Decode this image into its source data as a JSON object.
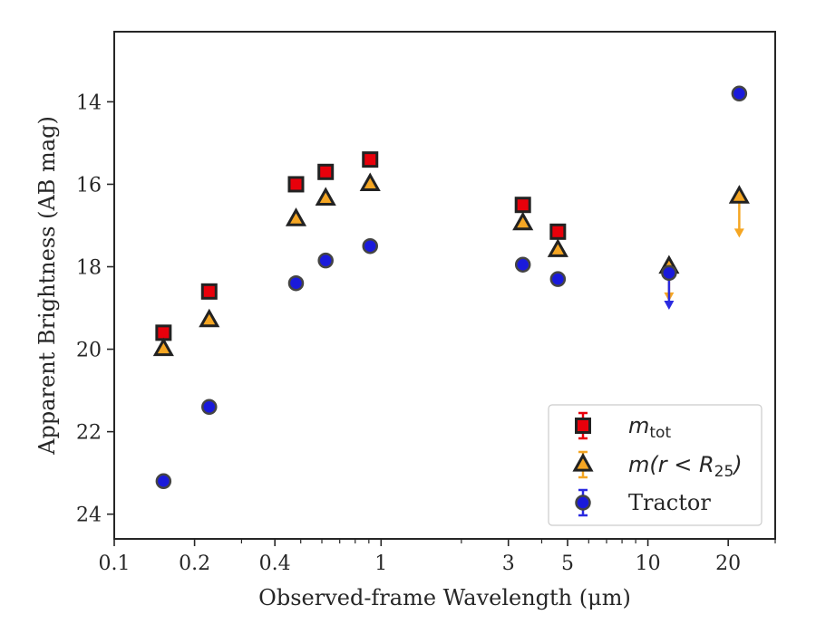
{
  "chart_data": {
    "type": "scatter",
    "xlabel": "Observed-frame Wavelength (μm)",
    "ylabel": "Apparent Brightness (AB mag)",
    "xscale": "log",
    "xlim": [
      0.1,
      30
    ],
    "ylim": [
      24.6,
      12.3
    ],
    "y_inverted": true,
    "x_ticks": [
      {
        "value": 0.1,
        "label": "0.1"
      },
      {
        "value": 0.2,
        "label": "0.2"
      },
      {
        "value": 0.4,
        "label": "0.4"
      },
      {
        "value": 1,
        "label": "1"
      },
      {
        "value": 3,
        "label": "3"
      },
      {
        "value": 5,
        "label": "5"
      },
      {
        "value": 10,
        "label": "10"
      },
      {
        "value": 20,
        "label": "20"
      }
    ],
    "x_minor_ticks": [
      0.3,
      0.5,
      0.6,
      0.7,
      0.8,
      0.9,
      2,
      4,
      6,
      7,
      8,
      9,
      30
    ],
    "y_ticks": [
      14,
      16,
      18,
      20,
      22,
      24
    ],
    "grid": false,
    "legend_position": "bottom-right",
    "series": [
      {
        "name": "m_tot",
        "legend": {
          "base": "m",
          "sub": "tot"
        },
        "marker": "square",
        "color": "#e8000b",
        "edge_color": "#222222",
        "errorbar_color": "#e8000b",
        "points": [
          {
            "x": 0.153,
            "y": 19.6
          },
          {
            "x": 0.227,
            "y": 18.6
          },
          {
            "x": 0.48,
            "y": 16.0
          },
          {
            "x": 0.62,
            "y": 15.7
          },
          {
            "x": 0.91,
            "y": 15.4
          },
          {
            "x": 3.4,
            "y": 16.5
          },
          {
            "x": 4.6,
            "y": 17.15
          }
        ]
      },
      {
        "name": "m(r < R25)",
        "legend": {
          "base": "m(r < R",
          "sub": "25",
          "tail": ")"
        },
        "marker": "triangle",
        "color": "#f5a623",
        "edge_color": "#222222",
        "errorbar_color": "#f5a623",
        "points": [
          {
            "x": 0.153,
            "y": 20.0
          },
          {
            "x": 0.227,
            "y": 19.3
          },
          {
            "x": 0.48,
            "y": 16.85
          },
          {
            "x": 0.62,
            "y": 16.35
          },
          {
            "x": 0.91,
            "y": 16.0
          },
          {
            "x": 3.4,
            "y": 16.95
          },
          {
            "x": 4.6,
            "y": 17.6
          },
          {
            "x": 12.0,
            "y": 18.0,
            "upper_limit_to": 18.8
          },
          {
            "x": 22.0,
            "y": 16.3,
            "upper_limit_to": 17.25
          }
        ]
      },
      {
        "name": "Tractor",
        "legend": {
          "base": "Tractor"
        },
        "marker": "circle",
        "color": "#1a1adb",
        "edge_color": "#444444",
        "errorbar_color": "#2a2ae0",
        "points": [
          {
            "x": 0.153,
            "y": 23.2
          },
          {
            "x": 0.227,
            "y": 21.4
          },
          {
            "x": 0.48,
            "y": 18.4
          },
          {
            "x": 0.62,
            "y": 17.85
          },
          {
            "x": 0.91,
            "y": 17.5
          },
          {
            "x": 3.4,
            "y": 17.95
          },
          {
            "x": 4.6,
            "y": 18.3
          },
          {
            "x": 12.0,
            "y": 18.15,
            "upper_limit_to": 19.0
          },
          {
            "x": 22.0,
            "y": 13.8
          }
        ]
      }
    ]
  }
}
